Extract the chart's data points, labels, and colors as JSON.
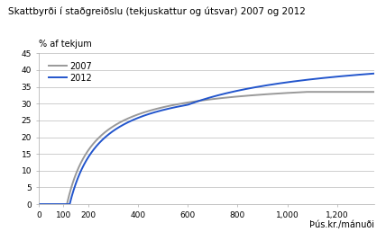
{
  "title": "Skattbyrði í staðgreiðslu (tekjuskattur og útsvar) 2007 og 2012",
  "ylabel": "% af tekjum",
  "xlabel": "Þús.kr./mánuði",
  "xlim": [
    0,
    1350
  ],
  "ylim": [
    0,
    45
  ],
  "yticks": [
    0,
    5,
    10,
    15,
    20,
    25,
    30,
    35,
    40,
    45
  ],
  "xticks": [
    0,
    100,
    200,
    400,
    600,
    800,
    1000,
    1200
  ],
  "color_2007": "#999999",
  "color_2012": "#2255cc",
  "legend_2007": "2007",
  "legend_2012": "2012",
  "bg_color": "#ffffff",
  "line_width": 1.4,
  "params_2007": {
    "personal_allowance": 114,
    "tax_rate": 0.3746,
    "asymptote": 33.5
  },
  "params_2012": {
    "personal_allowance": 125,
    "tax_rate_low": 0.3746,
    "tax_rate_high": 0.4646,
    "bracket": 600,
    "asymptote": 39.4
  }
}
